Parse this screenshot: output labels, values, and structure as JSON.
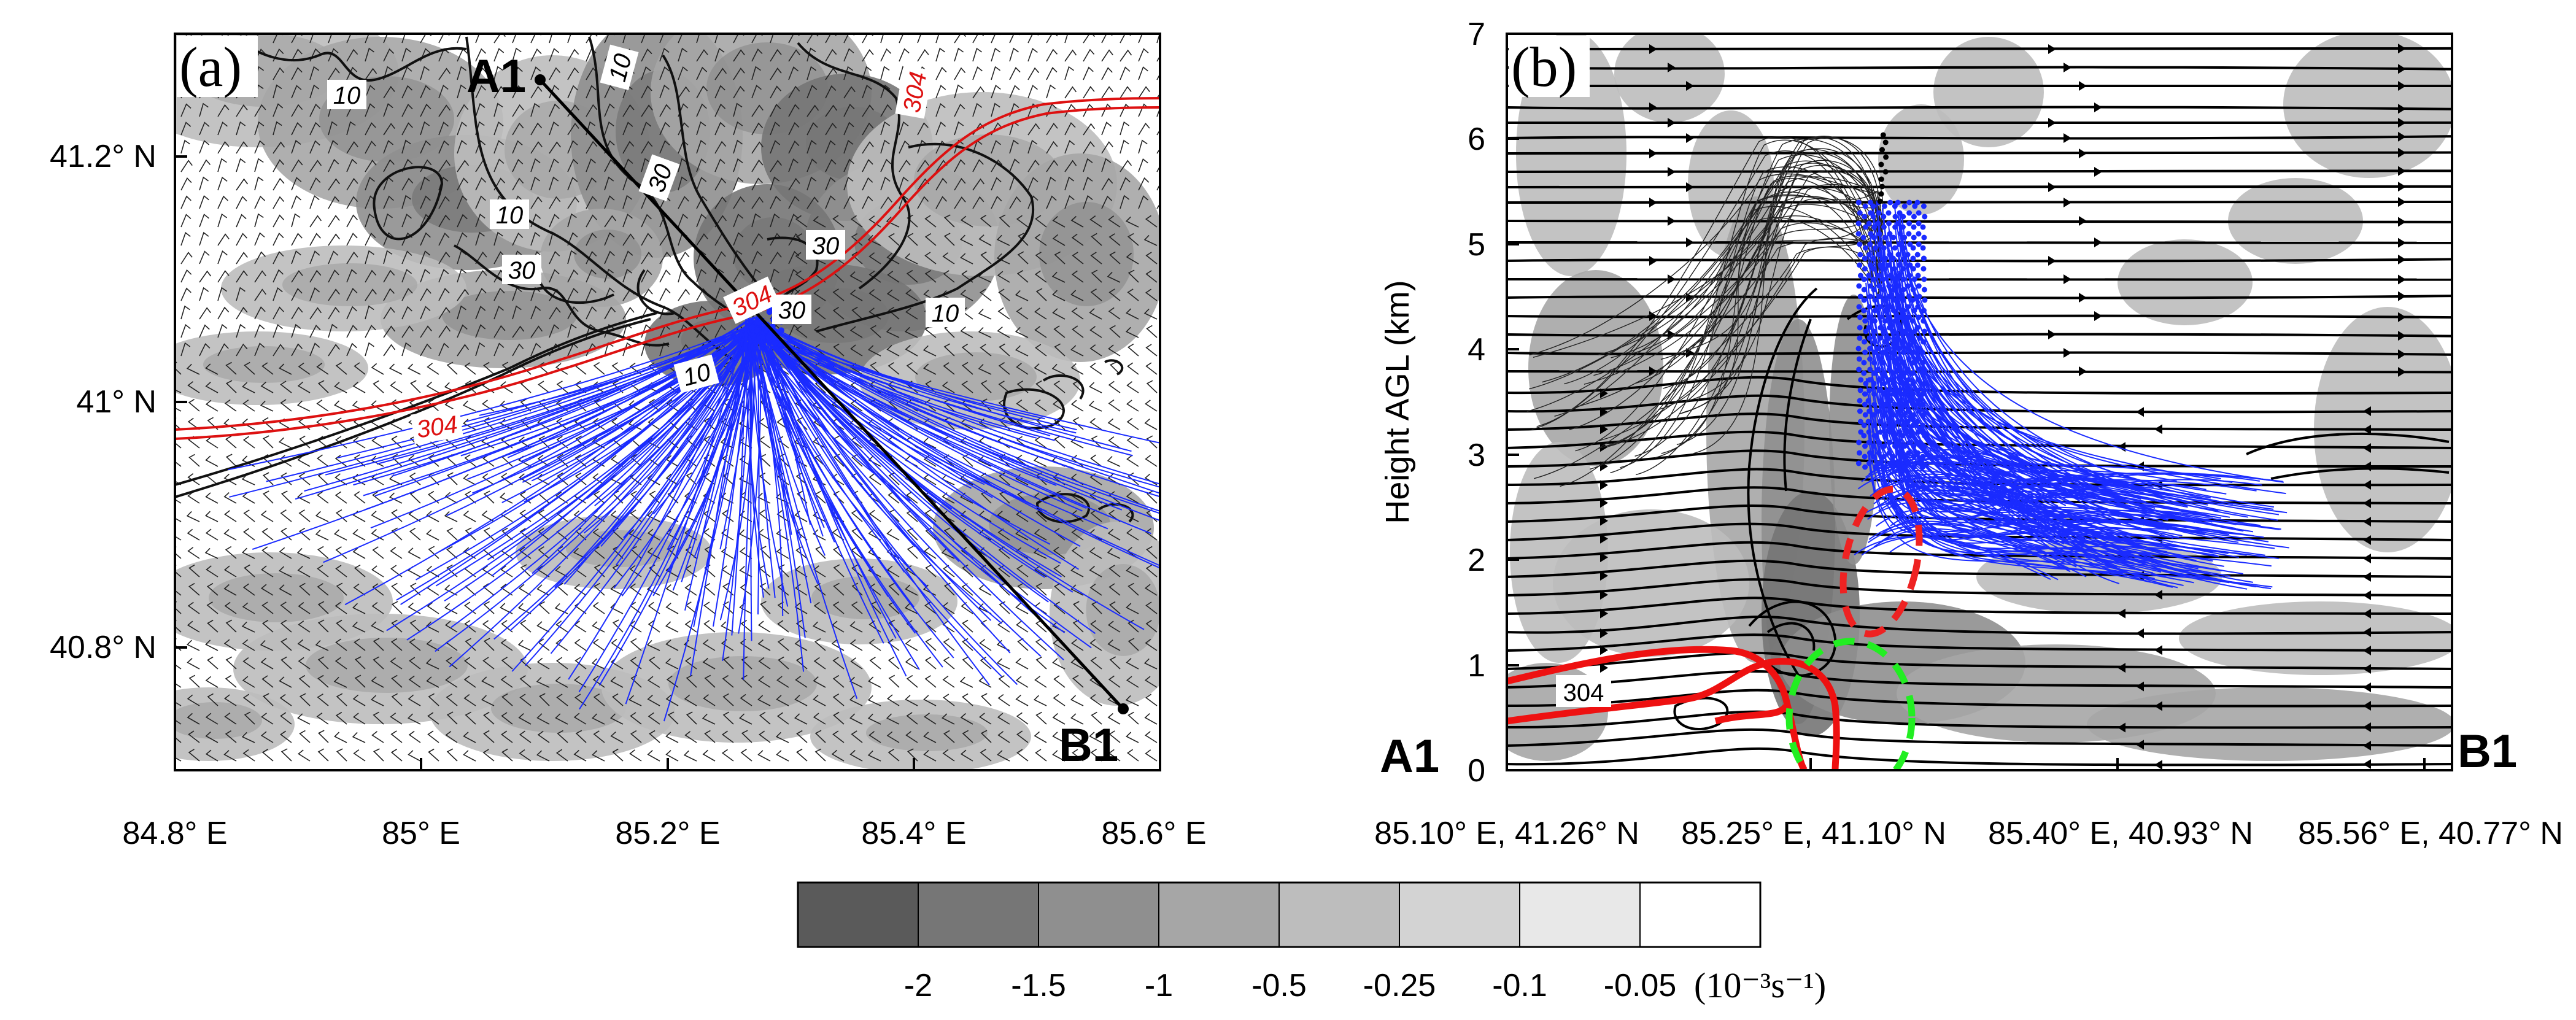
{
  "colors": {
    "trajectory": "#1a2bff",
    "contour_red": "#dd1111",
    "green_ellipse": "#22ee22",
    "red_ellipse": "#ee2222",
    "shade_levels": [
      "#5a5a5a",
      "#767676",
      "#8f8f8f",
      "#a6a6a6",
      "#bdbdbd",
      "#d3d3d3",
      "#e8e8e8",
      "#ffffff"
    ]
  },
  "panel_a": {
    "label": "(a)",
    "y_ticks": [
      "41.2° N",
      "41° N",
      "40.8° N"
    ],
    "x_ticks": [
      "84.8° E",
      "85° E",
      "85.2° E",
      "85.4° E",
      "85.6° E"
    ],
    "start_point": "A1",
    "end_point": "B1",
    "contour_labels_black": [
      "10",
      "10",
      "10",
      "30",
      "30",
      "30",
      "30",
      "10",
      "10"
    ],
    "contour_labels_red": [
      "304",
      "304",
      "304"
    ]
  },
  "panel_b": {
    "label": "(b)",
    "y_axis_label": "Height AGL (km)",
    "y_ticks": [
      "7",
      "6",
      "5",
      "4",
      "3",
      "2",
      "1",
      "0"
    ],
    "x_ticks": [
      "85.10° E, 41.26° N",
      "85.25° E, 41.10° N",
      "85.40° E, 40.93° N",
      "85.56° E, 40.77° N"
    ],
    "start_point": "A1",
    "end_point": "B1",
    "contour_label_red": "304"
  },
  "colorbar": {
    "labels": [
      "-2",
      "-1.5",
      "-1",
      "-0.5",
      "-0.25",
      "-0.1",
      "-0.05"
    ],
    "unit": "(10⁻³s⁻¹)"
  }
}
